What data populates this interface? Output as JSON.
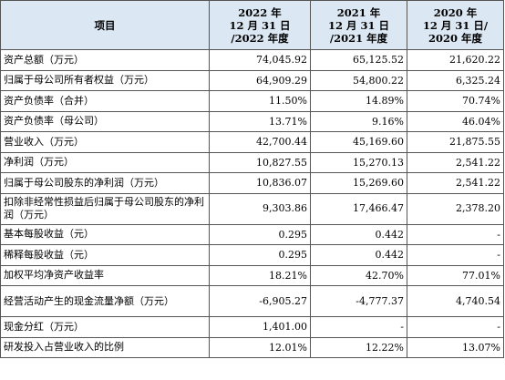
{
  "header": {
    "item": "项目",
    "years": [
      [
        "2022 年",
        "12 月 31 日",
        "/2022 年度"
      ],
      [
        "2021 年",
        "12 月 31 日",
        "/2021 年度"
      ],
      [
        "2020 年",
        "12 月 31 日/",
        "2020 年度"
      ]
    ]
  },
  "rows": [
    {
      "label": "资产总额（万元）",
      "values": [
        "74,045.92",
        "65,125.52",
        "21,620.22"
      ]
    },
    {
      "label": "归属于母公司所有者权益（万元）",
      "values": [
        "64,909.29",
        "54,800.22",
        "6,325.24"
      ]
    },
    {
      "label": "资产负债率（合并）",
      "values": [
        "11.50%",
        "14.89%",
        "70.74%"
      ]
    },
    {
      "label": "资产负债率（母公司）",
      "values": [
        "13.71%",
        "9.16%",
        "46.04%"
      ]
    },
    {
      "label": "营业收入（万元）",
      "values": [
        "42,700.44",
        "45,169.60",
        "21,875.55"
      ]
    },
    {
      "label": "净利润（万元）",
      "values": [
        "10,827.55",
        "15,270.13",
        "2,541.22"
      ]
    },
    {
      "label": "归属于母公司股东的净利润（万元）",
      "values": [
        "10,836.07",
        "15,269.60",
        "2,541.22"
      ]
    },
    {
      "label": "扣除非经常性损益后归属于母公司股东的净利润（万元）",
      "values": [
        "9,303.86",
        "17,466.47",
        "2,378.20"
      ],
      "tall": true
    },
    {
      "label": "基本每股收益（元）",
      "values": [
        "0.295",
        "0.442",
        "-"
      ]
    },
    {
      "label": "稀释每股收益（元）",
      "values": [
        "0.295",
        "0.442",
        "-"
      ]
    },
    {
      "label": "加权平均净资产收益率",
      "values": [
        "18.21%",
        "42.70%",
        "77.01%"
      ]
    },
    {
      "label": "经营活动产生的现金流量净额（万元）",
      "values": [
        "-6,905.27",
        "-4,777.37",
        "4,740.54"
      ],
      "tall": true
    },
    {
      "label": "现金分红（万元）",
      "values": [
        "1,401.00",
        "-",
        "-"
      ]
    },
    {
      "label": "研发投入占营业收入的比例",
      "values": [
        "12.01%",
        "12.22%",
        "13.07%"
      ]
    }
  ]
}
